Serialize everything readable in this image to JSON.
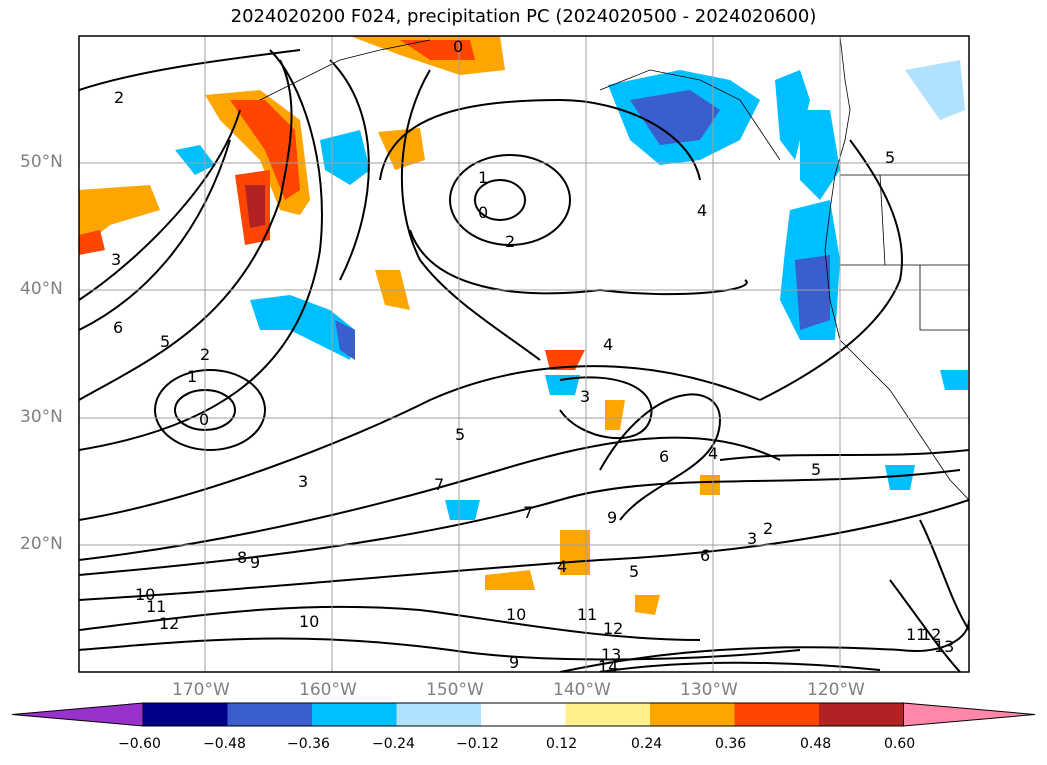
{
  "title": "2024020200 F024, precipitation PC (2024020500 - 2024020600)",
  "lat_labels": [
    "50°N",
    "40°N",
    "30°N",
    "20°N"
  ],
  "lon_labels": [
    "170°W",
    "160°W",
    "150°W",
    "140°W",
    "130°W",
    "120°W"
  ],
  "colorbar": {
    "ticks": [
      "−0.60",
      "−0.48",
      "−0.36",
      "−0.24",
      "−0.12",
      "0.12",
      "0.24",
      "0.36",
      "0.48",
      "0.60"
    ],
    "colors": [
      "#9932cc",
      "#00008b",
      "#3a5fcd",
      "#00bfff",
      "#b0e2ff",
      "#ffffff",
      "#fff08c",
      "#ffa500",
      "#ff4500",
      "#b22222",
      "#ff88aa"
    ]
  },
  "contour_labels": [
    "0",
    "2",
    "1",
    "0",
    "2",
    "4",
    "3",
    "6",
    "5",
    "2",
    "1",
    "0",
    "3",
    "5",
    "7",
    "8",
    "9",
    "10",
    "11",
    "12",
    "4",
    "3",
    "6",
    "4",
    "5",
    "2",
    "3",
    "5",
    "6",
    "7",
    "9",
    "10",
    "11",
    "12",
    "13",
    "14",
    "10",
    "11",
    "12",
    "13",
    "4",
    "5",
    "9"
  ]
}
